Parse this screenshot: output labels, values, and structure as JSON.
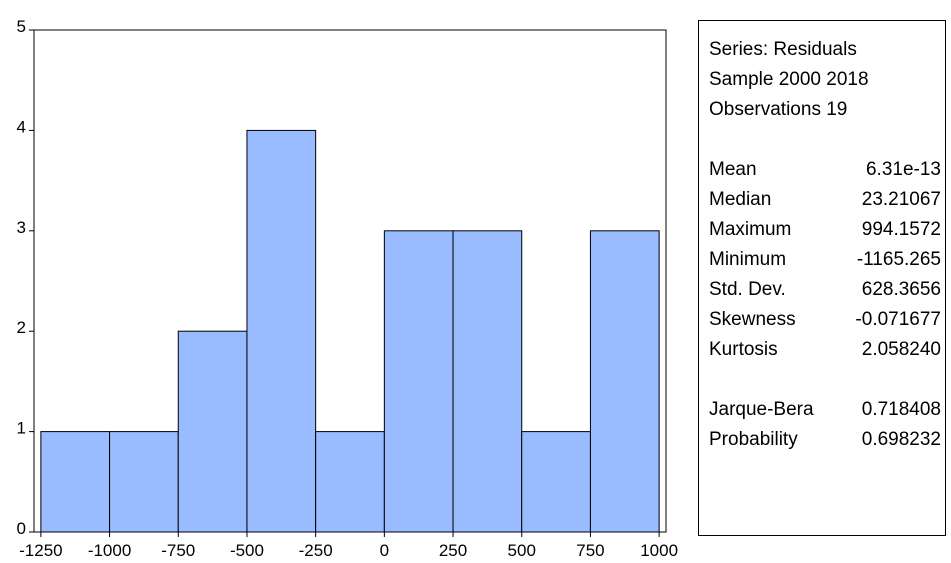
{
  "chart_data": {
    "type": "bar",
    "subtype": "histogram",
    "bin_edges": [
      -1250,
      -1000,
      -750,
      -500,
      -250,
      0,
      250,
      500,
      750,
      1000
    ],
    "values": [
      1,
      1,
      2,
      4,
      1,
      3,
      3,
      1,
      3
    ],
    "x_ticks": [
      -1250,
      -1000,
      -750,
      -500,
      -250,
      0,
      250,
      500,
      750,
      1000
    ],
    "y_ticks": [
      0,
      1,
      2,
      3,
      4,
      5
    ],
    "xlim": [
      -1275,
      1025
    ],
    "ylim": [
      0,
      5
    ],
    "bar_color": "#99bbff",
    "grid": false,
    "title": "",
    "xlabel": "",
    "ylabel": ""
  },
  "stats": {
    "header": [
      "Series: Residuals",
      "Sample 2000 2018",
      "Observations 19"
    ],
    "rows": [
      {
        "name": "Mean",
        "value": "6.31e-13"
      },
      {
        "name": "Median",
        "value": "23.21067"
      },
      {
        "name": "Maximum",
        "value": "994.1572"
      },
      {
        "name": "Minimum",
        "value": "-1165.265"
      },
      {
        "name": "Std. Dev.",
        "value": "628.3656"
      },
      {
        "name": "Skewness",
        "value": "-0.071677"
      },
      {
        "name": "Kurtosis",
        "value": "2.058240"
      }
    ],
    "rows2": [
      {
        "name": "Jarque-Bera",
        "value": "0.718408"
      },
      {
        "name": "Probability",
        "value": "0.698232"
      }
    ]
  }
}
